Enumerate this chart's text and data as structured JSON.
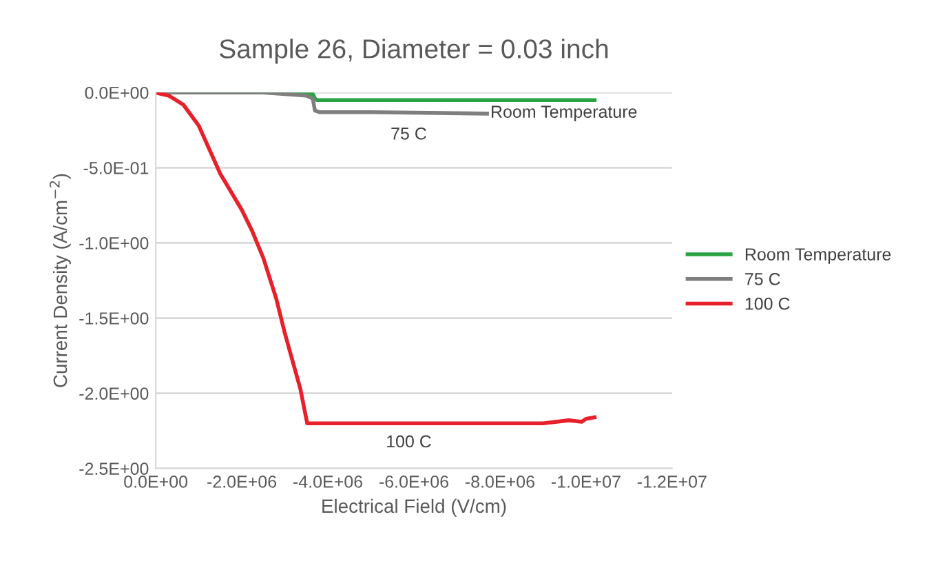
{
  "chart_data": {
    "type": "line",
    "title": "Sample 26, Diameter = 0.03 inch",
    "xlabel": "Electrical Field (V/cm)",
    "ylabel": "Current Density (A/cm$^{−2}$)",
    "xlim": [
      0,
      -12000000
    ],
    "ylim": [
      -2.5,
      0
    ],
    "xticks": [
      {
        "value": 0,
        "label": "0.0E+00"
      },
      {
        "value": -2000000,
        "label": "-2.0E+06"
      },
      {
        "value": -4000000,
        "label": "-4.0E+06"
      },
      {
        "value": -6000000,
        "label": "-6.0E+06"
      },
      {
        "value": -8000000,
        "label": "-8.0E+06"
      },
      {
        "value": -10000000,
        "label": "-1.0E+07"
      },
      {
        "value": -12000000,
        "label": "-1.2E+07"
      }
    ],
    "yticks": [
      {
        "value": 0,
        "label": "0.0E+00"
      },
      {
        "value": -0.5,
        "label": "-5.0E-01"
      },
      {
        "value": -1.0,
        "label": "-1.0E+00"
      },
      {
        "value": -1.5,
        "label": "-1.5E+00"
      },
      {
        "value": -2.0,
        "label": "-2.0E+00"
      },
      {
        "value": -2.5,
        "label": "-2.5E+00"
      }
    ],
    "grid": "y",
    "legend": "right",
    "marker": "none",
    "line_style": "solid",
    "series": [
      {
        "name": "Room Temperature",
        "color": "#2aa344",
        "x": [
          0,
          -3000000,
          -3650000,
          -3700000,
          -3750000,
          -6000000,
          -8000000,
          -10200000
        ],
        "values": [
          0,
          0,
          -0.01,
          -0.04,
          -0.05,
          -0.05,
          -0.05,
          -0.05
        ]
      },
      {
        "name": "75 C",
        "color": "#7f7f7f",
        "x": [
          0,
          -2500000,
          -3000000,
          -3500000,
          -3650000,
          -3700000,
          -3800000,
          -5000000,
          -7700000
        ],
        "values": [
          0,
          0,
          -0.01,
          -0.02,
          -0.04,
          -0.12,
          -0.13,
          -0.13,
          -0.14
        ]
      },
      {
        "name": "100 C",
        "color": "#e8202a",
        "x": [
          0,
          -300000,
          -640000,
          -1000000,
          -1500000,
          -2000000,
          -2240000,
          -2500000,
          -2800000,
          -3000000,
          -3360000,
          -3520000,
          -3700000,
          -6000000,
          -9000000,
          -9600000,
          -9900000,
          -10000000,
          -10200000
        ],
        "values": [
          0,
          -0.02,
          -0.08,
          -0.22,
          -0.54,
          -0.78,
          -0.92,
          -1.1,
          -1.37,
          -1.6,
          -1.97,
          -2.2,
          -2.2,
          -2.2,
          -2.2,
          -2.18,
          -2.19,
          -2.17,
          -2.16
        ]
      }
    ],
    "annotations": [
      "Room Temperature",
      "75 C",
      "100 C"
    ]
  }
}
